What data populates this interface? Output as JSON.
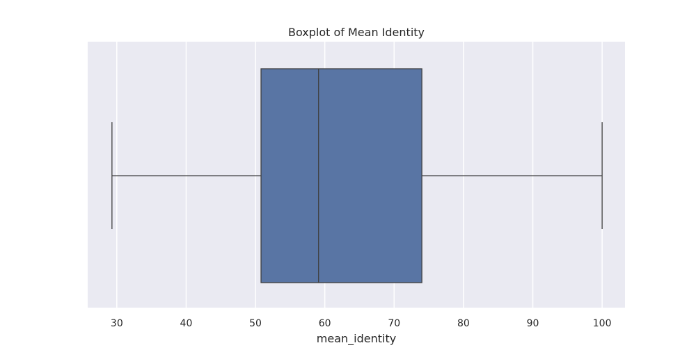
{
  "chart_data": {
    "type": "boxplot",
    "title": "Boxplot of Mean Identity",
    "xlabel": "mean_identity",
    "ylabel": "",
    "xlim": [
      25.8,
      103.3
    ],
    "x_ticks": [
      30,
      40,
      50,
      60,
      70,
      80,
      90,
      100
    ],
    "x_tick_labels": [
      "30",
      "40",
      "50",
      "60",
      "70",
      "80",
      "90",
      "100"
    ],
    "grid": true,
    "box": {
      "whisker_low": 29.3,
      "q1": 50.8,
      "median": 59.1,
      "q3": 74.0,
      "whisker_high": 100.0
    },
    "colors": {
      "background": "#eaeaf2",
      "grid": "#ffffff",
      "box_fill": "#5975a4",
      "line": "#3f3f3f"
    }
  }
}
